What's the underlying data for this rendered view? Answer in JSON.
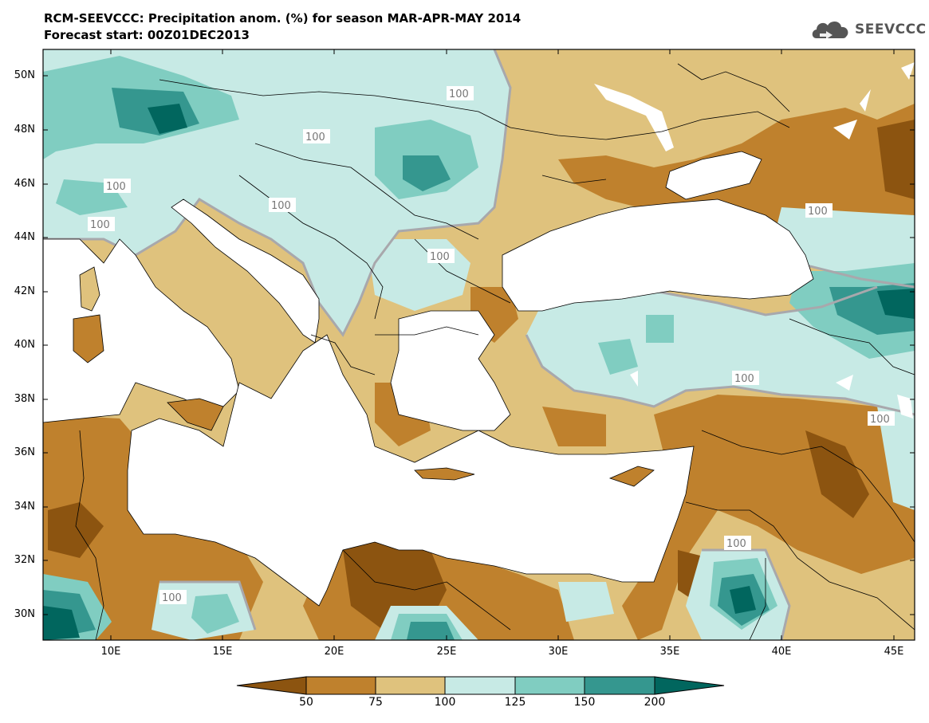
{
  "header": {
    "title_line1": "RCM-SEEVCCC: Precipitation anom. (%) for season MAR-APR-MAY 2014",
    "title_line2": "Forecast start: 00Z01DEC2013",
    "logo_text": "SEEVCCC"
  },
  "axes": {
    "lat_labels": [
      "50N",
      "48N",
      "46N",
      "44N",
      "42N",
      "40N",
      "38N",
      "36N",
      "34N",
      "32N",
      "30N"
    ],
    "lon_labels": [
      "10E",
      "15E",
      "20E",
      "25E",
      "30E",
      "35E",
      "40E",
      "45E"
    ]
  },
  "contour_label": "100",
  "colorbar": {
    "labels": [
      "50",
      "75",
      "100",
      "125",
      "150",
      "200"
    ],
    "colors": [
      "#8c5410",
      "#bf812d",
      "#dfc27d",
      "#c7eae5",
      "#80cdc1",
      "#35978f",
      "#01665e"
    ]
  }
}
